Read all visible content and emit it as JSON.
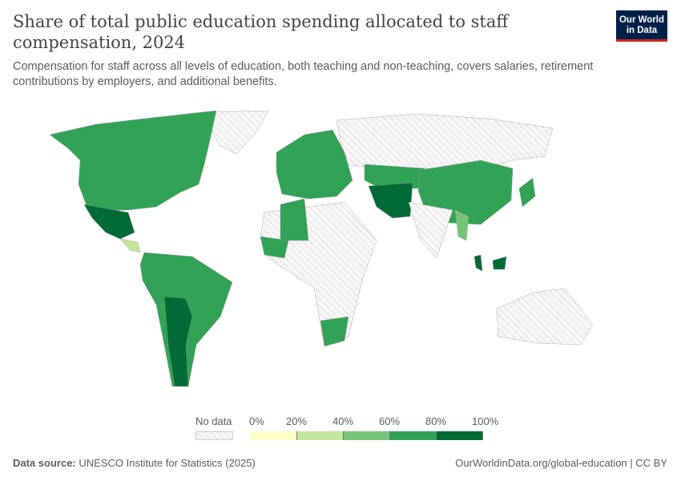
{
  "header": {
    "title": "Share of total public education spending allocated to staff compensation, 2024",
    "subtitle": "Compensation for staff across all levels of education, both teaching and non-teaching, covers salaries, retirement contributions by employers, and additional benefits.",
    "logo_line1": "Our World",
    "logo_line2": "in Data"
  },
  "legend": {
    "no_data_label": "No data",
    "ticks": [
      "0%",
      "20%",
      "40%",
      "60%",
      "80%",
      "100%"
    ],
    "bins": [
      {
        "range": "0-20%",
        "color": "#ffffc8"
      },
      {
        "range": "20-40%",
        "color": "#c3e59c"
      },
      {
        "range": "40-60%",
        "color": "#76c47a"
      },
      {
        "range": "60-80%",
        "color": "#32a257"
      },
      {
        "range": "80-100%",
        "color": "#006b34"
      }
    ]
  },
  "footer": {
    "source_label": "Data source:",
    "source": "UNESCO Institute for Statistics (2025)",
    "url_license": "OurWorldinData.org/global-education | CC BY"
  }
}
